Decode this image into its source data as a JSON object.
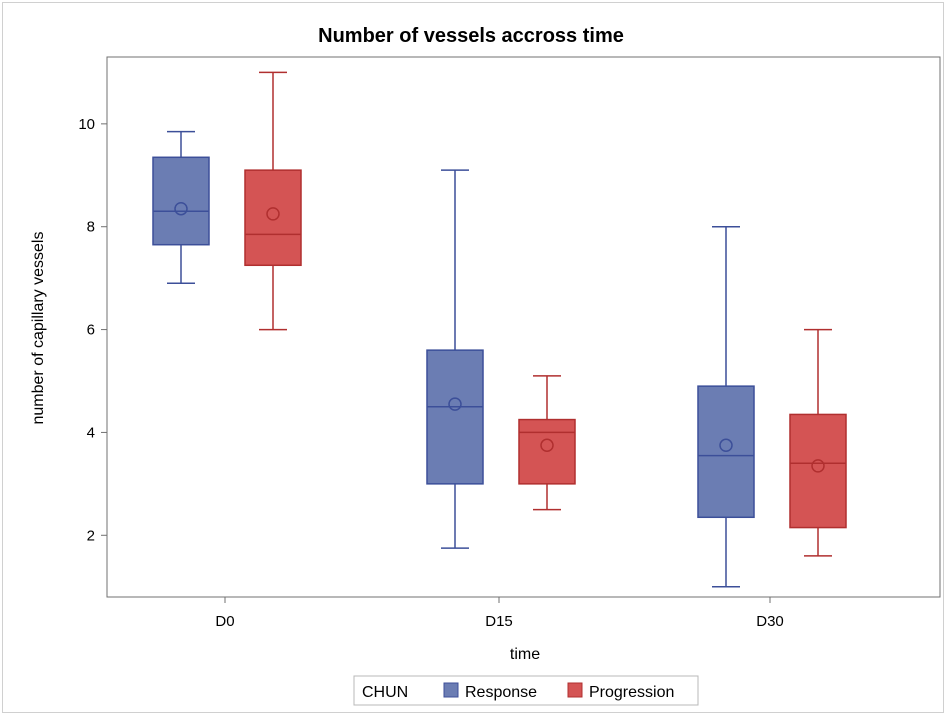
{
  "chart_data": {
    "type": "box",
    "title": "Number of vessels accross time",
    "xlabel": "time",
    "ylabel": "number of capillary vessels",
    "categories": [
      "D0",
      "D15",
      "D30"
    ],
    "ylim": [
      0.8,
      11.3
    ],
    "yticks": [
      2,
      4,
      6,
      8,
      10
    ],
    "grid": false,
    "legend": {
      "position": "bottom",
      "title": "CHUN",
      "entries": [
        "Response",
        "Progression"
      ]
    },
    "series": [
      {
        "name": "Response",
        "color": "#6b7db3",
        "edge_color": "#3c4f99",
        "boxes": [
          {
            "category": "D0",
            "min": 6.9,
            "q1": 7.65,
            "median": 8.3,
            "q3": 9.35,
            "max": 9.85,
            "mean": 8.35
          },
          {
            "category": "D15",
            "min": 1.75,
            "q1": 3.0,
            "median": 4.5,
            "q3": 5.6,
            "max": 9.1,
            "mean": 4.55
          },
          {
            "category": "D30",
            "min": 1.0,
            "q1": 2.35,
            "median": 3.55,
            "q3": 4.9,
            "max": 8.0,
            "mean": 3.75
          }
        ]
      },
      {
        "name": "Progression",
        "color": "#d45454",
        "edge_color": "#b02f2f",
        "boxes": [
          {
            "category": "D0",
            "min": 6.0,
            "q1": 7.25,
            "median": 7.85,
            "q3": 9.1,
            "max": 11.0,
            "mean": 8.25
          },
          {
            "category": "D15",
            "min": 2.5,
            "q1": 3.0,
            "median": 4.0,
            "q3": 4.25,
            "max": 5.1,
            "mean": 3.75
          },
          {
            "category": "D30",
            "min": 1.6,
            "q1": 2.15,
            "median": 3.4,
            "q3": 4.35,
            "max": 6.0,
            "mean": 3.35
          }
        ]
      }
    ]
  }
}
